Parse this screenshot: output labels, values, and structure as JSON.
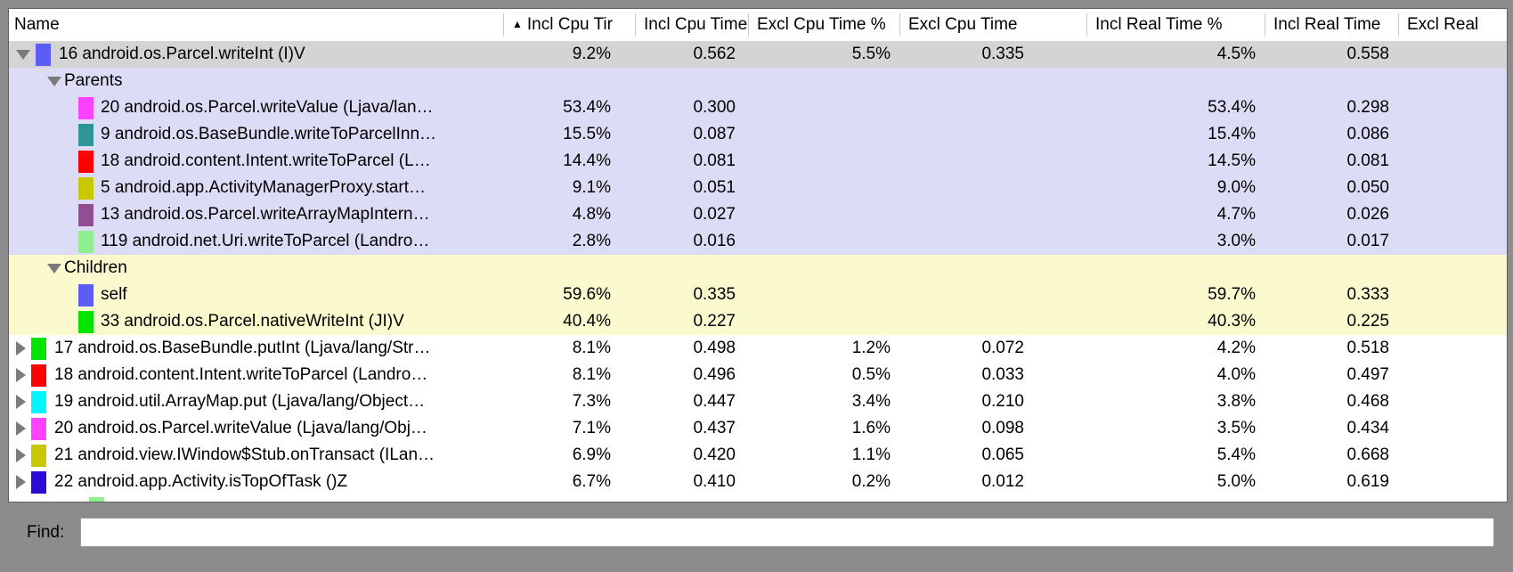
{
  "window": {
    "background": "#8c8c8c"
  },
  "table": {
    "columns": [
      {
        "id": "name",
        "label": "Name",
        "sorted": false
      },
      {
        "id": "incl-cpu-pct",
        "label": "Incl Cpu Tir",
        "sorted": true,
        "sort_icon": "ascending-triangle"
      },
      {
        "id": "incl-cpu-time",
        "label": "Incl Cpu Time",
        "sorted": false
      },
      {
        "id": "excl-cpu-pct",
        "label": "Excl Cpu Time %",
        "sorted": false
      },
      {
        "id": "excl-cpu-time",
        "label": "Excl Cpu Time",
        "sorted": false
      },
      {
        "id": "incl-real-pct",
        "label": "Incl Real Time %",
        "sorted": false
      },
      {
        "id": "incl-real-time",
        "label": "Incl Real Time",
        "sorted": false
      },
      {
        "id": "excl-real",
        "label": "Excl Real",
        "sorted": false
      }
    ],
    "rows": [
      {
        "kind": "row",
        "bg": "selected",
        "arrow": "down",
        "color": "#5d5cf5",
        "name": "16 android.os.Parcel.writeInt (I)V",
        "incl_cpu_pct": "9.2%",
        "incl_cpu": "0.562",
        "excl_cpu_pct": "5.5%",
        "excl_cpu": "0.335",
        "incl_real_pct": "4.5%",
        "incl_real": "0.558"
      },
      {
        "kind": "section",
        "bg": "parents",
        "arrow": "down",
        "name": "Parents",
        "incl_cpu_pct": "",
        "incl_cpu": "",
        "excl_cpu_pct": "",
        "excl_cpu": "",
        "incl_real_pct": "",
        "incl_real": ""
      },
      {
        "kind": "sub",
        "bg": "parents",
        "color": "#ff42ff",
        "name": "20 android.os.Parcel.writeValue (Ljava/lan…",
        "incl_cpu_pct": "53.4%",
        "incl_cpu": "0.300",
        "excl_cpu_pct": "",
        "excl_cpu": "",
        "incl_real_pct": "53.4%",
        "incl_real": "0.298"
      },
      {
        "kind": "sub",
        "bg": "parents",
        "color": "#2e9595",
        "name": "9 android.os.BaseBundle.writeToParcelInn…",
        "incl_cpu_pct": "15.5%",
        "incl_cpu": "0.087",
        "excl_cpu_pct": "",
        "excl_cpu": "",
        "incl_real_pct": "15.4%",
        "incl_real": "0.086"
      },
      {
        "kind": "sub",
        "bg": "parents",
        "color": "#ff0000",
        "name": "18 android.content.Intent.writeToParcel (L…",
        "incl_cpu_pct": "14.4%",
        "incl_cpu": "0.081",
        "excl_cpu_pct": "",
        "excl_cpu": "",
        "incl_real_pct": "14.5%",
        "incl_real": "0.081"
      },
      {
        "kind": "sub",
        "bg": "parents",
        "color": "#c8c800",
        "name": "5 android.app.ActivityManagerProxy.start…",
        "incl_cpu_pct": "9.1%",
        "incl_cpu": "0.051",
        "excl_cpu_pct": "",
        "excl_cpu": "",
        "incl_real_pct": "9.0%",
        "incl_real": "0.050"
      },
      {
        "kind": "sub",
        "bg": "parents",
        "color": "#8f4f90",
        "name": "13 android.os.Parcel.writeArrayMapIntern…",
        "incl_cpu_pct": "4.8%",
        "incl_cpu": "0.027",
        "excl_cpu_pct": "",
        "excl_cpu": "",
        "incl_real_pct": "4.7%",
        "incl_real": "0.026"
      },
      {
        "kind": "sub",
        "bg": "parents",
        "color": "#90ee90",
        "name": "119 android.net.Uri.writeToParcel (Landro…",
        "incl_cpu_pct": "2.8%",
        "incl_cpu": "0.016",
        "excl_cpu_pct": "",
        "excl_cpu": "",
        "incl_real_pct": "3.0%",
        "incl_real": "0.017"
      },
      {
        "kind": "section",
        "bg": "children",
        "arrow": "down",
        "name": "Children",
        "incl_cpu_pct": "",
        "incl_cpu": "",
        "excl_cpu_pct": "",
        "excl_cpu": "",
        "incl_real_pct": "",
        "incl_real": ""
      },
      {
        "kind": "sub",
        "bg": "children",
        "color": "#5d5cf5",
        "name": "self",
        "incl_cpu_pct": "59.6%",
        "incl_cpu": "0.335",
        "excl_cpu_pct": "",
        "excl_cpu": "",
        "incl_real_pct": "59.7%",
        "incl_real": "0.333"
      },
      {
        "kind": "sub",
        "bg": "children",
        "color": "#00e400",
        "name": "33 android.os.Parcel.nativeWriteInt (JI)V",
        "incl_cpu_pct": "40.4%",
        "incl_cpu": "0.227",
        "excl_cpu_pct": "",
        "excl_cpu": "",
        "incl_real_pct": "40.3%",
        "incl_real": "0.225"
      },
      {
        "kind": "row",
        "bg": "white",
        "arrow": "right",
        "color": "#00e400",
        "name": "17 android.os.BaseBundle.putInt (Ljava/lang/Str…",
        "incl_cpu_pct": "8.1%",
        "incl_cpu": "0.498",
        "excl_cpu_pct": "1.2%",
        "excl_cpu": "0.072",
        "incl_real_pct": "4.2%",
        "incl_real": "0.518"
      },
      {
        "kind": "row",
        "bg": "white",
        "arrow": "right",
        "color": "#ff0000",
        "name": "18 android.content.Intent.writeToParcel (Landro…",
        "incl_cpu_pct": "8.1%",
        "incl_cpu": "0.496",
        "excl_cpu_pct": "0.5%",
        "excl_cpu": "0.033",
        "incl_real_pct": "4.0%",
        "incl_real": "0.497"
      },
      {
        "kind": "row",
        "bg": "white",
        "arrow": "right",
        "color": "#00f6ff",
        "name": "19 android.util.ArrayMap.put (Ljava/lang/Object…",
        "incl_cpu_pct": "7.3%",
        "incl_cpu": "0.447",
        "excl_cpu_pct": "3.4%",
        "excl_cpu": "0.210",
        "incl_real_pct": "3.8%",
        "incl_real": "0.468"
      },
      {
        "kind": "row",
        "bg": "white",
        "arrow": "right",
        "color": "#ff42ff",
        "name": "20 android.os.Parcel.writeValue (Ljava/lang/Obj…",
        "incl_cpu_pct": "7.1%",
        "incl_cpu": "0.437",
        "excl_cpu_pct": "1.6%",
        "excl_cpu": "0.098",
        "incl_real_pct": "3.5%",
        "incl_real": "0.434"
      },
      {
        "kind": "row",
        "bg": "white",
        "arrow": "right",
        "color": "#c8c800",
        "name": "21 android.view.IWindow$Stub.onTransact (ILan…",
        "incl_cpu_pct": "6.9%",
        "incl_cpu": "0.420",
        "excl_cpu_pct": "1.1%",
        "excl_cpu": "0.065",
        "incl_real_pct": "5.4%",
        "incl_real": "0.668"
      },
      {
        "kind": "row",
        "bg": "white",
        "arrow": "right",
        "color": "#2b0bd5",
        "name": "22 android.app.Activity.isTopOfTask ()Z",
        "incl_cpu_pct": "6.7%",
        "incl_cpu": "0.410",
        "excl_cpu_pct": "0.2%",
        "excl_cpu": "0.012",
        "incl_real_pct": "5.0%",
        "incl_real": "0.619"
      }
    ],
    "partial_row": {
      "color": "#90ee90"
    }
  },
  "find": {
    "label": "Find:",
    "value": ""
  },
  "icons": {
    "sort_ascending": "▲",
    "disclosure_expanded": "triangle-down",
    "disclosure_collapsed": "triangle-right"
  }
}
